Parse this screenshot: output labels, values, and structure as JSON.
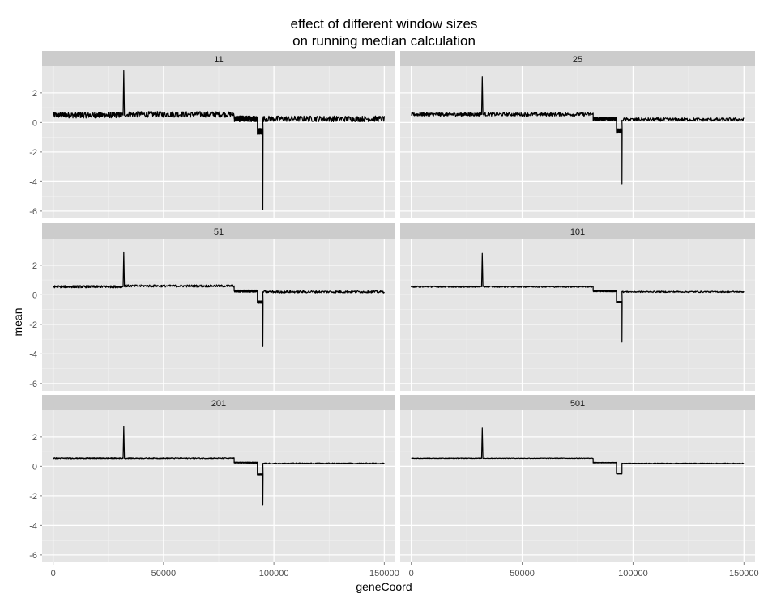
{
  "chart_data": {
    "type": "line",
    "title_lines": [
      "effect of different window sizes",
      "on running median calculation"
    ],
    "xlabel": "geneCoord",
    "ylabel": "mean",
    "xlim": [
      -5000,
      155000
    ],
    "ylim": [
      -6.5,
      3.8
    ],
    "x_ticks": [
      0,
      50000,
      100000,
      150000
    ],
    "x_tick_labels": [
      "0",
      "50000",
      "100000",
      "150000"
    ],
    "y_ticks": [
      2,
      0,
      -2,
      -4,
      -6
    ],
    "y_tick_labels": [
      "2",
      "0",
      "-2",
      "-4",
      "-6"
    ],
    "grid": true,
    "facet_layout": "2 columns x 3 rows",
    "line_color": "#000000",
    "panel_background": "#e5e5e5",
    "strip_background": "#cccccc",
    "panels": [
      {
        "label": "11",
        "noise": 0.2,
        "segments": [
          {
            "x": [
              0,
              31500
            ],
            "level": 0.5
          },
          {
            "x": [
              32600,
              82000
            ],
            "level": 0.55
          },
          {
            "x": [
              82000,
              92500
            ],
            "level": 0.25
          },
          {
            "x": [
              92500,
              95000
            ],
            "level": -0.6
          },
          {
            "x": [
              95000,
              150000
            ],
            "level": 0.25
          }
        ],
        "peak": {
          "x": 32000,
          "value": 3.5
        },
        "dip": {
          "x": 95000,
          "value": -5.9
        }
      },
      {
        "label": "25",
        "noise": 0.12,
        "segments": [
          {
            "x": [
              0,
              31500
            ],
            "level": 0.55
          },
          {
            "x": [
              32600,
              82000
            ],
            "level": 0.55
          },
          {
            "x": [
              82000,
              92500
            ],
            "level": 0.25
          },
          {
            "x": [
              92500,
              95000
            ],
            "level": -0.55
          },
          {
            "x": [
              95000,
              150000
            ],
            "level": 0.2
          }
        ],
        "peak": {
          "x": 32000,
          "value": 3.1
        },
        "dip": {
          "x": 95000,
          "value": -4.2
        }
      },
      {
        "label": "51",
        "noise": 0.08,
        "segments": [
          {
            "x": [
              0,
              31500
            ],
            "level": 0.55
          },
          {
            "x": [
              32600,
              82000
            ],
            "level": 0.6
          },
          {
            "x": [
              82000,
              92500
            ],
            "level": 0.25
          },
          {
            "x": [
              92500,
              95000
            ],
            "level": -0.5
          },
          {
            "x": [
              95000,
              150000
            ],
            "level": 0.2
          }
        ],
        "peak": {
          "x": 32000,
          "value": 2.9
        },
        "dip": {
          "x": 95000,
          "value": -3.5
        }
      },
      {
        "label": "101",
        "noise": 0.05,
        "segments": [
          {
            "x": [
              0,
              31500
            ],
            "level": 0.55
          },
          {
            "x": [
              32600,
              82000
            ],
            "level": 0.55
          },
          {
            "x": [
              82000,
              92500
            ],
            "level": 0.25
          },
          {
            "x": [
              92500,
              95000
            ],
            "level": -0.5
          },
          {
            "x": [
              95000,
              150000
            ],
            "level": 0.2
          }
        ],
        "peak": {
          "x": 32000,
          "value": 2.8
        },
        "dip": {
          "x": 95000,
          "value": -3.2
        }
      },
      {
        "label": "201",
        "noise": 0.035,
        "segments": [
          {
            "x": [
              0,
              31500
            ],
            "level": 0.55
          },
          {
            "x": [
              32600,
              82000
            ],
            "level": 0.55
          },
          {
            "x": [
              82000,
              92500
            ],
            "level": 0.25
          },
          {
            "x": [
              92500,
              95000
            ],
            "level": -0.55
          },
          {
            "x": [
              95000,
              150000
            ],
            "level": 0.2
          }
        ],
        "peak": {
          "x": 32000,
          "value": 2.7
        },
        "dip": {
          "x": 95000,
          "value": -2.6
        }
      },
      {
        "label": "501",
        "noise": 0.02,
        "segments": [
          {
            "x": [
              0,
              31500
            ],
            "level": 0.55
          },
          {
            "x": [
              32600,
              82000
            ],
            "level": 0.55
          },
          {
            "x": [
              82000,
              92500
            ],
            "level": 0.25
          },
          {
            "x": [
              92500,
              95000
            ],
            "level": -0.5
          },
          {
            "x": [
              95000,
              150000
            ],
            "level": 0.2
          }
        ],
        "peak": {
          "x": 32000,
          "value": 2.6
        },
        "dip": null
      }
    ]
  }
}
